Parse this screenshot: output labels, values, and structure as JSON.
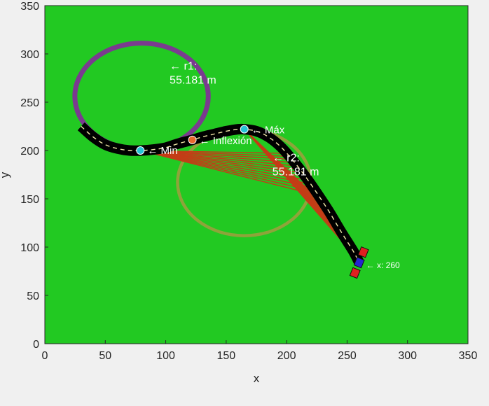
{
  "chart_data": {
    "type": "line",
    "title": "",
    "xlabel": "x",
    "ylabel": "y",
    "xlim": [
      0,
      350
    ],
    "ylim": [
      0,
      350
    ],
    "xticks": [
      "0",
      "50",
      "100",
      "150",
      "200",
      "250",
      "300",
      "350"
    ],
    "yticks": [
      "0",
      "50",
      "100",
      "150",
      "200",
      "250",
      "300",
      "350"
    ],
    "grid": false,
    "colors": {
      "plot_bg": "#22c922",
      "road": "#000000",
      "centerline": "#f2e8a8",
      "circle_r1": "#7a3b8f",
      "circle_r2": "#8ea43a",
      "rays": "#c43c16",
      "marker_extreme": "#27c3d6",
      "marker_inflection": "#e8692e",
      "vehicle_body": "#2525d0",
      "vehicle_cells": "#e02020"
    },
    "series": [
      {
        "kind": "path",
        "x": [
          30,
          40,
          50,
          60,
          70,
          80,
          90,
          100,
          110,
          122,
          130,
          140,
          150,
          160,
          165,
          175,
          185,
          195,
          205,
          215,
          225,
          235,
          245,
          255,
          260
        ],
        "y": [
          225,
          214,
          206,
          202,
          200,
          200,
          201,
          203,
          207,
          211,
          214,
          217,
          220,
          222,
          222,
          220,
          214,
          204,
          190,
          174,
          156,
          137,
          116,
          96,
          84
        ]
      }
    ],
    "circles": [
      {
        "cx": 80,
        "cy": 256,
        "r": 55.181
      },
      {
        "cx": 165,
        "cy": 167,
        "r": 55.181
      }
    ],
    "markers": [
      {
        "x": 79,
        "y": 200,
        "role": "extreme"
      },
      {
        "x": 122,
        "y": 211,
        "role": "inflection"
      },
      {
        "x": 165,
        "y": 222,
        "role": "extreme"
      }
    ],
    "annotations": [
      {
        "lines": [
          "← r1:",
          "55.181 m"
        ],
        "x": 80,
        "y": 256,
        "size": 16
      },
      {
        "lines": [
          "← r2:",
          "55.181 m"
        ],
        "x": 165,
        "y": 167,
        "size": 16
      },
      {
        "lines": [
          "← Min"
        ],
        "x": 79,
        "y": 200,
        "size": 15
      },
      {
        "lines": [
          "← Inflexión"
        ],
        "x": 122,
        "y": 211,
        "size": 15
      },
      {
        "lines": [
          "← Máx"
        ],
        "x": 165,
        "y": 222,
        "size": 15
      },
      {
        "lines": [
          "← x: 260"
        ],
        "x": 260,
        "y": 84,
        "size": 12
      }
    ],
    "rays": [
      {
        "anchor": [
          79,
          200
        ],
        "from": 200,
        "to": 228
      },
      {
        "anchor": [
          165,
          222
        ],
        "from": 232,
        "to": 260
      }
    ],
    "vehicle": {
      "x": 260,
      "y": 84
    }
  }
}
